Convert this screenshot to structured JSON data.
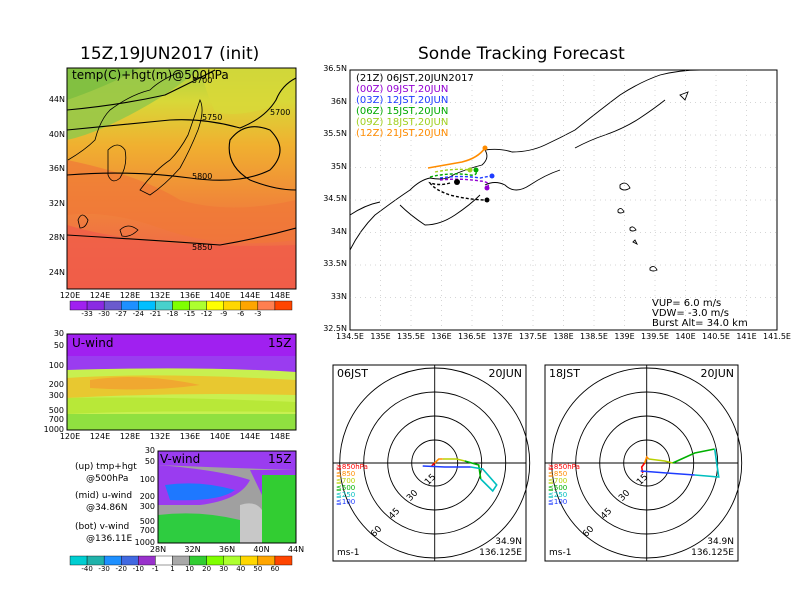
{
  "left": {
    "title": "15Z,19JUN2017 (init)",
    "map_label": "temp(C)+hgt(m)@500hPa",
    "lat_labels": [
      "44N",
      "40N",
      "36N",
      "32N",
      "28N",
      "24N"
    ],
    "lon_labels": [
      "120E",
      "124E",
      "128E",
      "132E",
      "136E",
      "140E",
      "144E",
      "148E"
    ],
    "contour_labels": [
      "5700",
      "5750",
      "5700",
      "5800",
      "5850"
    ],
    "temp_colorbar": {
      "colors": [
        "#a020f0",
        "#8a2be2",
        "#6a5acd",
        "#1e90ff",
        "#00bfff",
        "#48d1cc",
        "#7fff00",
        "#adff2f",
        "#ffff00",
        "#ffd700",
        "#ffa500",
        "#ff7f50",
        "#ff4500"
      ],
      "labels": [
        "-33",
        "-30",
        "-27",
        "-24",
        "-21",
        "-18",
        "-15",
        "-12",
        "-9",
        "-6",
        "-3"
      ]
    },
    "uwind": {
      "label": "U-wind",
      "time": "15Z",
      "levels": [
        "30",
        "50",
        "100",
        "200",
        "300",
        "500",
        "700",
        "1000"
      ],
      "lon_labels": [
        "120E",
        "124E",
        "128E",
        "132E",
        "136E",
        "140E",
        "144E",
        "148E"
      ]
    },
    "vwind": {
      "label": "V-wind",
      "time": "15Z",
      "levels": [
        "30",
        "50",
        "100",
        "200",
        "300",
        "500",
        "700",
        "1000"
      ],
      "lat_labels": [
        "28N",
        "32N",
        "36N",
        "40N",
        "44N"
      ]
    },
    "legend_notes": [
      "(up) tmp+hgt",
      "@500hPa",
      "(mid) u-wind",
      "@34.86N",
      "(bot) v-wind",
      "@136.11E"
    ],
    "wind_colorbar": {
      "colors": [
        "#00ced1",
        "#20b2aa",
        "#1e90ff",
        "#4169e1",
        "#9932cc",
        "#ffffff",
        "#a9a9a9",
        "#32cd32",
        "#7fff00",
        "#adff2f",
        "#ffd700",
        "#ffa500",
        "#ff4500"
      ],
      "labels": [
        "-40",
        "-30",
        "-20",
        "-10",
        "-1",
        "1",
        "10",
        "20",
        "30",
        "40",
        "50",
        "60"
      ]
    }
  },
  "right": {
    "title": "Sonde Tracking Forecast",
    "lat_labels": [
      "36.5N",
      "36N",
      "35.5N",
      "35N",
      "34.5N",
      "34N",
      "33.5N",
      "33N",
      "32.5N"
    ],
    "lon_labels": [
      "134.5E",
      "135E",
      "135.5E",
      "136E",
      "136.5E",
      "137E",
      "137.5E",
      "138E",
      "138.5E",
      "139E",
      "139.5E",
      "140E",
      "140.5E",
      "141E",
      "141.5E"
    ],
    "legend": [
      {
        "text": "(21Z)  06JST,20JUN2017",
        "color": "#000000"
      },
      {
        "text": "(00Z)  09JST,20JUN",
        "color": "#9400d3"
      },
      {
        "text": "(03Z)  12JST,20JUN",
        "color": "#1e3cff"
      },
      {
        "text": "(06Z)  15JST,20JUN",
        "color": "#00aa00"
      },
      {
        "text": "(09Z)  18JST,20JUN",
        "color": "#a0d020"
      },
      {
        "text": "(12Z)  21JST,20JUN",
        "color": "#ff8c00"
      }
    ],
    "params": [
      "VUP=  6.0  m/s",
      "VDW=  -3.0  m/s",
      "Burst Alt=  34.0  km"
    ]
  },
  "hodographs": [
    {
      "time": "06JST",
      "date": "20JUN",
      "pos": "34.9N",
      "lon": "136.125E",
      "unit": "ms-1",
      "ring_labels": [
        "15",
        "30",
        "45",
        "60"
      ],
      "levels": [
        {
          "t": "≧850hPa",
          "c": "#ff0000"
        },
        {
          "t": "≦850",
          "c": "#ff8c00"
        },
        {
          "t": "≦700",
          "c": "#b8d000"
        },
        {
          "t": "≦500",
          "c": "#00b000"
        },
        {
          "t": "≦250",
          "c": "#00bfbf"
        },
        {
          "t": "≦100",
          "c": "#1e3cff"
        }
      ]
    },
    {
      "time": "18JST",
      "date": "20JUN",
      "pos": "34.9N",
      "lon": "136.125E",
      "unit": "ms-1",
      "ring_labels": [
        "15",
        "30",
        "45",
        "60"
      ],
      "levels": [
        {
          "t": "≧850hPa",
          "c": "#ff0000"
        },
        {
          "t": "≦850",
          "c": "#ff8c00"
        },
        {
          "t": "≦700",
          "c": "#b8d000"
        },
        {
          "t": "≦500",
          "c": "#00b000"
        },
        {
          "t": "≦250",
          "c": "#00bfbf"
        },
        {
          "t": "≦100",
          "c": "#1e3cff"
        }
      ]
    }
  ]
}
